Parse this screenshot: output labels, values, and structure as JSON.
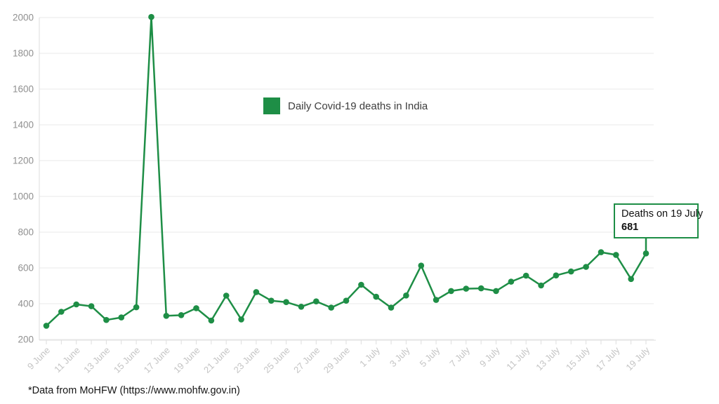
{
  "legend": {
    "label": "Daily Covid-19 deaths in India"
  },
  "tooltip": {
    "title": "Deaths on 19 July",
    "value": "681"
  },
  "footer": {
    "note": "*Data from MoHFW (https://www.mohfw.gov.in)"
  },
  "colors": {
    "accent_green": "#1e8e46",
    "y_label": "#909090",
    "x_label": "#c4c4c4",
    "gridline": "#e9e9e9",
    "axis": "#dedede",
    "text_dark": "#111111"
  },
  "chart_data": {
    "type": "line",
    "title": "",
    "xlabel": "",
    "ylabel": "",
    "x": [
      "9 June",
      "10 June",
      "11 June",
      "12 June",
      "13 June",
      "14 June",
      "15 June",
      "16 June",
      "17 June",
      "18 June",
      "19 June",
      "20 June",
      "21 June",
      "22 June",
      "23 June",
      "24 June",
      "25 June",
      "26 June",
      "27 June",
      "28 June",
      "29 June",
      "30 June",
      "1 July",
      "2 July",
      "3 July",
      "4 July",
      "5 July",
      "6 July",
      "7 July",
      "8 July",
      "9 July",
      "10 July",
      "11 July",
      "12 July",
      "13 July",
      "14 July",
      "15 July",
      "16 July",
      "17 July",
      "18 July",
      "19 July"
    ],
    "values": [
      277,
      355,
      396,
      386,
      309,
      323,
      380,
      2003,
      332,
      336,
      375,
      306,
      445,
      312,
      465,
      417,
      409,
      383,
      413,
      378,
      417,
      506,
      439,
      378,
      446,
      613,
      421,
      471,
      484,
      486,
      471,
      523,
      557,
      502,
      558,
      580,
      606,
      688,
      673,
      538,
      681
    ],
    "series_name": "Daily Covid-19 deaths in India",
    "x_tick_label_every": 2,
    "y_ticks": [
      200,
      400,
      600,
      800,
      1000,
      1200,
      1400,
      1600,
      1800,
      2000
    ],
    "ylim": [
      200,
      2000
    ],
    "grid": "horizontal",
    "legend_position": "top-center",
    "annotation": {
      "x": "19 July",
      "label": "Deaths on 19 July",
      "value": 681
    }
  }
}
